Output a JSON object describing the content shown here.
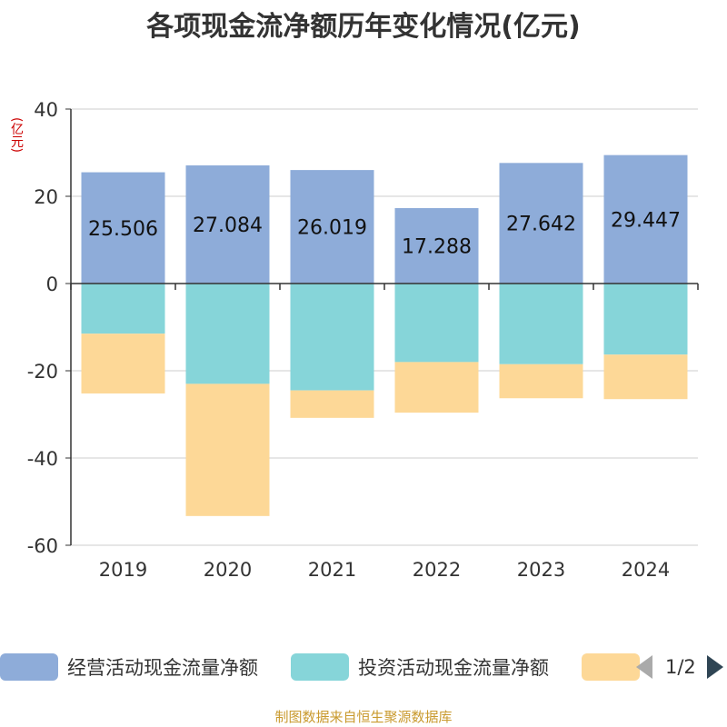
{
  "chart_data": {
    "type": "bar",
    "stacked": true,
    "title": "各项现金流净额历年变化情况(亿元)",
    "ylabel": "(亿元)",
    "ylim": [
      -60,
      40
    ],
    "yticks": [
      40,
      20,
      0,
      -20,
      -40,
      -60
    ],
    "grid": true,
    "categories": [
      "2019",
      "2020",
      "2021",
      "2022",
      "2023",
      "2024"
    ],
    "series": [
      {
        "name": "经营活动现金流量净额",
        "color": "#8eacd9",
        "values": [
          25.506,
          27.084,
          26.019,
          17.288,
          27.642,
          29.447
        ],
        "labels": [
          "25.506",
          "27.084",
          "26.019",
          "17.288",
          "27.642",
          "29.447"
        ]
      },
      {
        "name": "投资活动现金流量净额",
        "color": "#86d5d9",
        "values": [
          -11.5,
          -23.0,
          -24.5,
          -18.0,
          -18.5,
          -16.3
        ]
      },
      {
        "name": "",
        "color": "#fdd897",
        "values": [
          -13.7,
          -30.3,
          -6.3,
          -11.6,
          -7.8,
          -10.2
        ]
      }
    ]
  },
  "legend": {
    "items": [
      "经营活动现金流量净额",
      "投资活动现金流量净额",
      ""
    ],
    "page": "1/2"
  },
  "source": "制图数据来自恒生聚源数据库"
}
